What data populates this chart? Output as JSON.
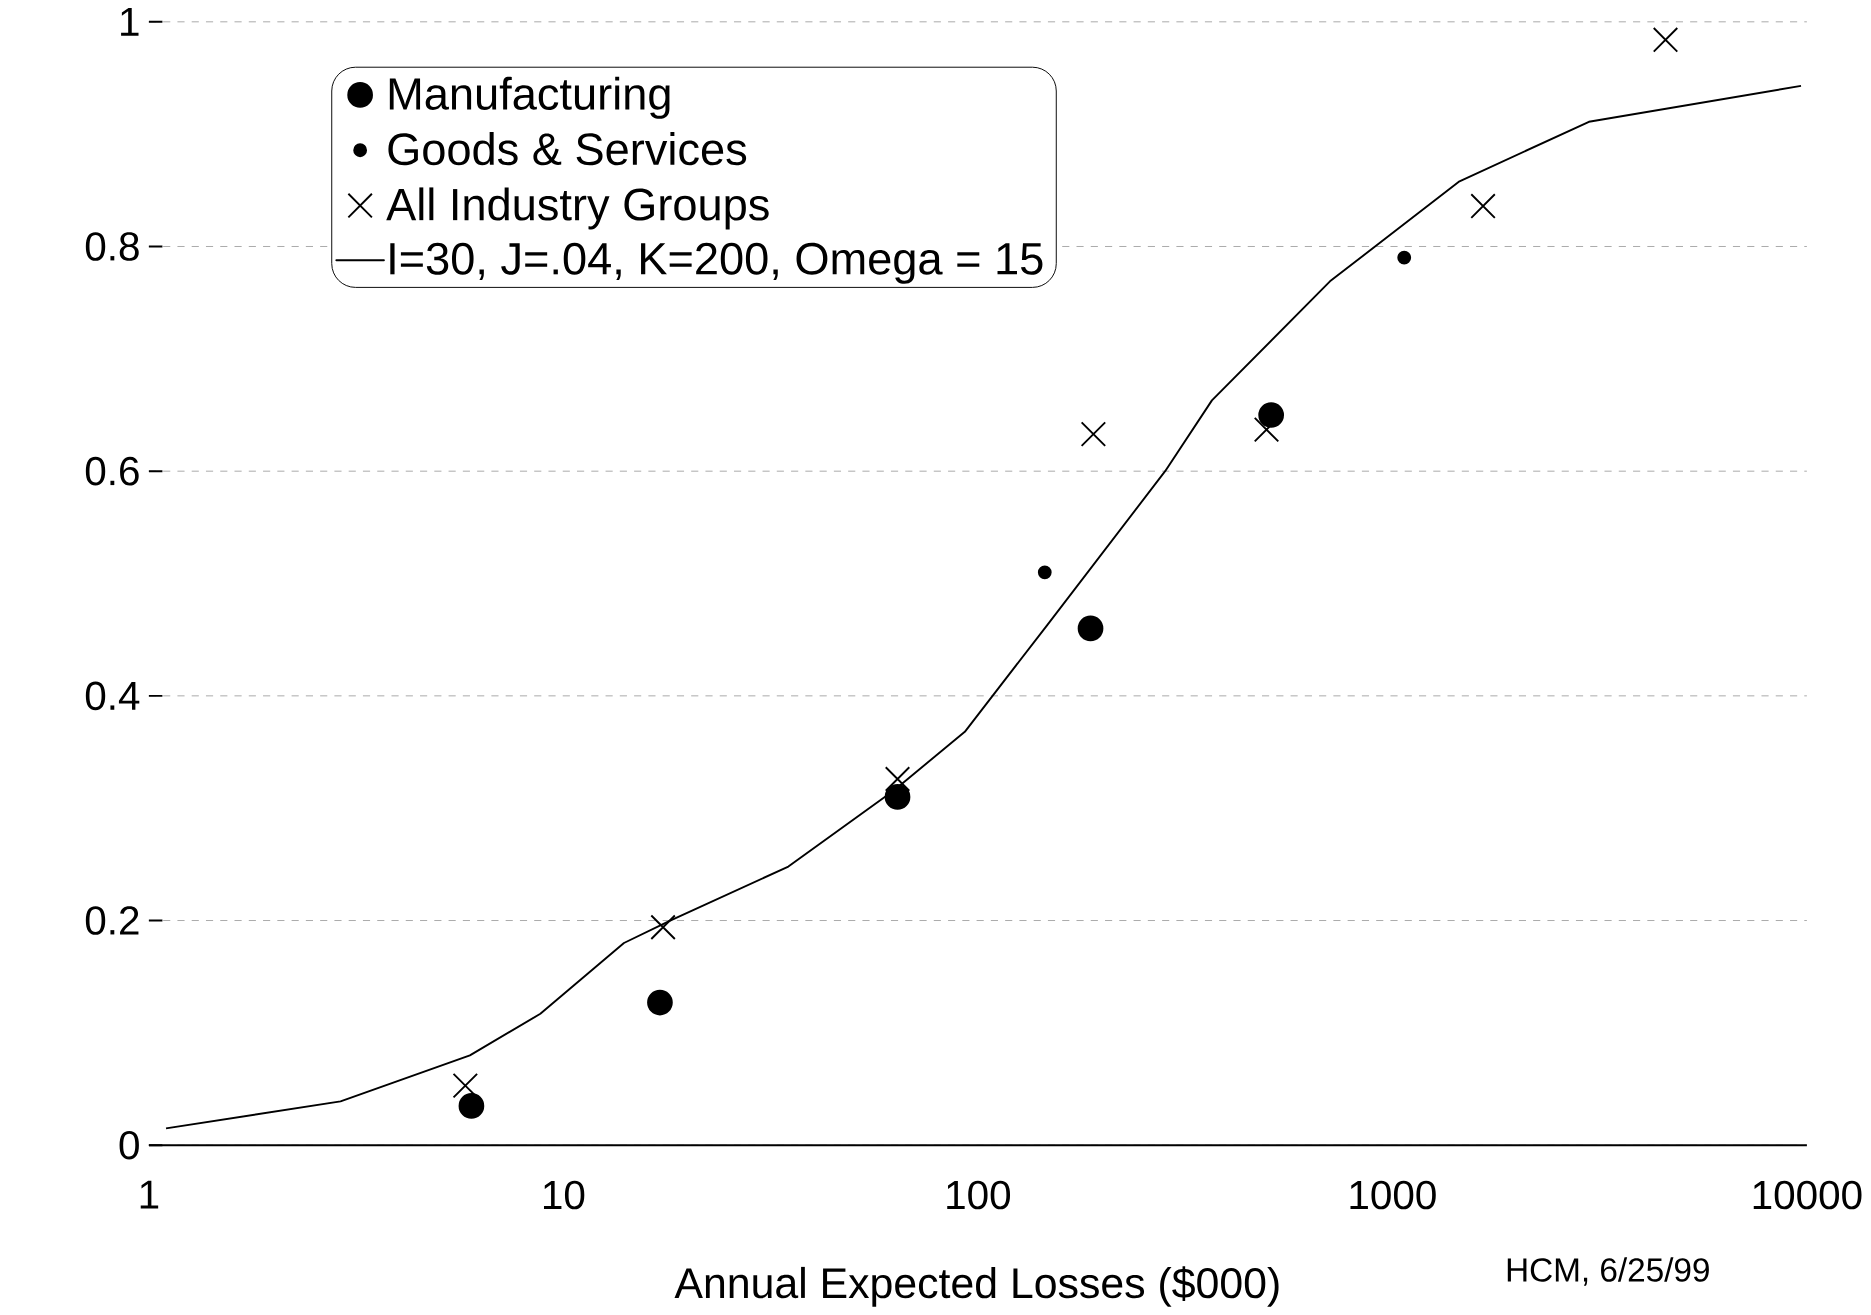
{
  "chart_data": {
    "type": "scatter",
    "xlabel": "Annual Expected Losses ($000)",
    "log": "x",
    "xlim": [
      1,
      10000
    ],
    "ylim": [
      0,
      1
    ],
    "xticks": [
      1,
      10,
      100,
      1000,
      10000
    ],
    "yticks": [
      0,
      0.2,
      0.4,
      0.6,
      0.8,
      1
    ],
    "grid": "y",
    "legend": "top left",
    "annotations": [
      "HCM, 6/25/99"
    ],
    "series": [
      {
        "name": "Manufacturing",
        "marker": "circle",
        "color": "#000000",
        "x": [
          6.0,
          17.1,
          64,
          187,
          510
        ],
        "values": [
          0.035,
          0.127,
          0.31,
          0.46,
          0.65
        ]
      },
      {
        "name": "Goods & Services",
        "marker": "circle",
        "color": "#000000",
        "x": [
          145,
          1068
        ],
        "values": [
          0.51,
          0.79
        ]
      },
      {
        "name": "All Industry Groups",
        "marker": "cross",
        "color": "#000000",
        "x": [
          5.8,
          17.4,
          64,
          190,
          497,
          1655,
          4560
        ],
        "values": [
          0.053,
          0.194,
          0.326,
          0.633,
          0.637,
          0.836,
          0.984
        ]
      },
      {
        "name": "I=30, J=.04, K=200, Omega = 15",
        "type": "line",
        "marker": "none",
        "color": "#000000",
        "x": [
          1.1,
          2.9,
          5.95,
          8.8,
          14,
          18.1,
          34.9,
          62.8,
          93,
          147,
          283,
          367,
          707,
          1452,
          2980,
          9680
        ],
        "values": [
          0.015,
          0.039,
          0.08,
          0.117,
          0.18,
          0.2,
          0.248,
          0.316,
          0.368,
          0.463,
          0.6,
          0.663,
          0.769,
          0.858,
          0.911,
          0.943
        ]
      }
    ]
  }
}
